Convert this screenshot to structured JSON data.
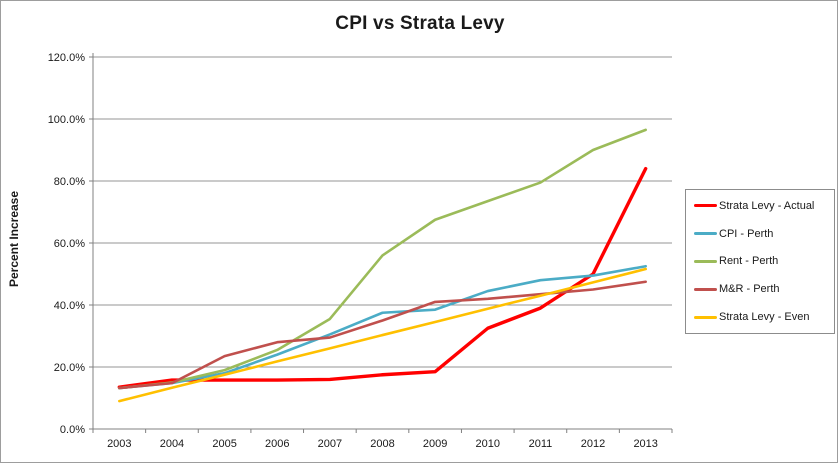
{
  "chart": {
    "outer_border_color": "#9d9d9d",
    "gridline_color": "#969696",
    "axis_color": "#808080",
    "background": "#ffffff"
  },
  "chart_data": {
    "type": "line",
    "title": "CPI vs Strata Levy",
    "xlabel": "",
    "ylabel": "Percent Increase",
    "x": [
      2003,
      2004,
      2005,
      2006,
      2007,
      2008,
      2009,
      2010,
      2011,
      2012,
      2013
    ],
    "ylim": [
      0,
      120
    ],
    "y_tick_step": 20,
    "y_tick_labels": [
      "0.0%",
      "20.0%",
      "40.0%",
      "60.0%",
      "80.0%",
      "100.0%",
      "120.0%"
    ],
    "grid": true,
    "legend_position": "right",
    "series": [
      {
        "name": "Strata Levy - Actual",
        "color": "#FF0000",
        "line_width": 3.4,
        "values": [
          13.5,
          15.8,
          15.8,
          15.8,
          16.0,
          17.5,
          18.5,
          32.5,
          39.0,
          50.0,
          84.0
        ]
      },
      {
        "name": "CPI - Perth",
        "color": "#4BACC6",
        "line_width": 2.6,
        "values": [
          13.2,
          14.8,
          18.0,
          24.0,
          30.5,
          37.5,
          38.5,
          44.5,
          48.0,
          49.5,
          52.5
        ]
      },
      {
        "name": "Rent - Perth",
        "color": "#9BBB59",
        "line_width": 2.6,
        "values": [
          13.2,
          15.0,
          19.0,
          25.5,
          35.5,
          56.0,
          67.5,
          73.5,
          79.5,
          90.0,
          96.5
        ]
      },
      {
        "name": "M&R - Perth",
        "color": "#C0504D",
        "line_width": 2.6,
        "values": [
          13.2,
          14.8,
          23.5,
          28.0,
          29.5,
          35.0,
          41.0,
          42.0,
          43.5,
          45.0,
          47.5
        ]
      },
      {
        "name": "Strata Levy - Even",
        "color": "#FFC000",
        "line_width": 2.6,
        "values": [
          9.0,
          13.3,
          17.5,
          21.8,
          26.0,
          30.3,
          34.5,
          38.8,
          43.0,
          47.3,
          51.6
        ]
      }
    ]
  }
}
